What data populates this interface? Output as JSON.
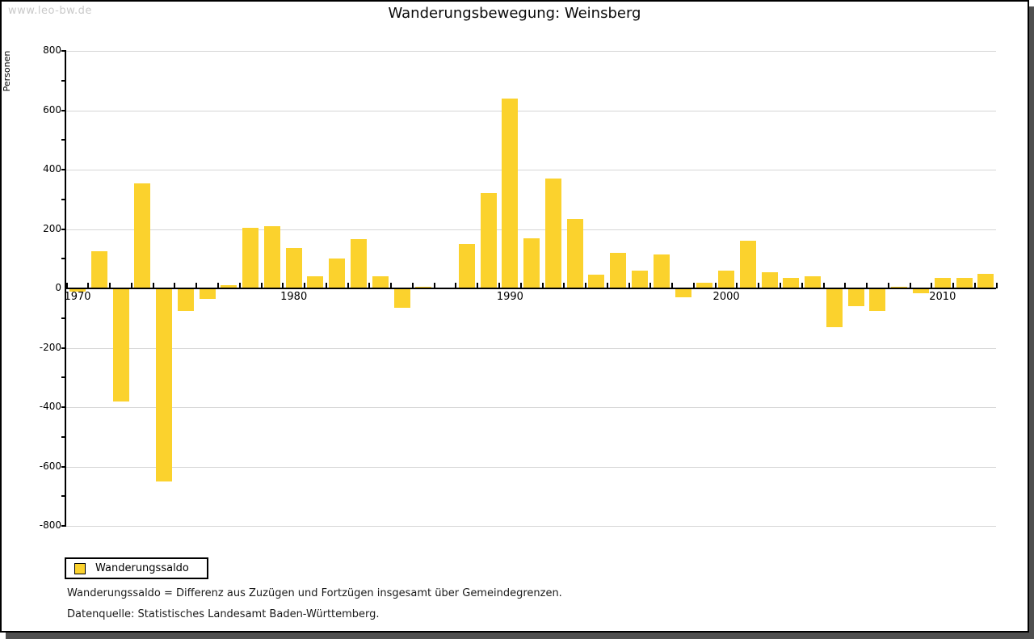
{
  "watermark": "www.leo-bw.de",
  "title": "Wanderungsbewegung:  Weinsberg",
  "y_axis_label": "Personen",
  "legend": {
    "label": "Wanderungssaldo"
  },
  "footnotes": [
    "Wanderungssaldo = Differenz aus Zuzügen und Fortzügen insgesamt über Gemeindegrenzen.",
    "Datenquelle: Statistisches Landesamt Baden-Württemberg."
  ],
  "colors": {
    "bar": "#FBD22D",
    "grid": "#D6D6D6",
    "axis": "#000000",
    "watermark": "#C9C9C9",
    "shadow": "#4F4F4F"
  },
  "chart_data": {
    "type": "bar",
    "title": "Wanderungsbewegung: Weinsberg",
    "ylabel": "Personen",
    "series_name": "Wanderungssaldo",
    "x": [
      1970,
      1971,
      1972,
      1973,
      1974,
      1975,
      1976,
      1977,
      1978,
      1979,
      1980,
      1981,
      1982,
      1983,
      1984,
      1985,
      1986,
      1987,
      1988,
      1989,
      1990,
      1991,
      1992,
      1993,
      1994,
      1995,
      1996,
      1997,
      1998,
      1999,
      2000,
      2001,
      2002,
      2003,
      2004,
      2005,
      2006,
      2007,
      2008,
      2009,
      2010,
      2011,
      2012
    ],
    "values": [
      -10,
      125,
      -380,
      355,
      -650,
      -75,
      -35,
      10,
      205,
      210,
      135,
      40,
      100,
      165,
      40,
      -65,
      5,
      0,
      150,
      320,
      640,
      170,
      370,
      235,
      45,
      120,
      60,
      115,
      -30,
      20,
      60,
      160,
      55,
      35,
      40,
      -130,
      -60,
      -75,
      5,
      -15,
      35,
      35,
      50
    ],
    "ylim": [
      -800,
      800
    ],
    "ytick_step": 200,
    "ytick_minor_step": 100,
    "xticks_labeled": [
      1970,
      1980,
      1990,
      2000,
      2010
    ],
    "grid": true,
    "legend_position": "bottom-left"
  }
}
